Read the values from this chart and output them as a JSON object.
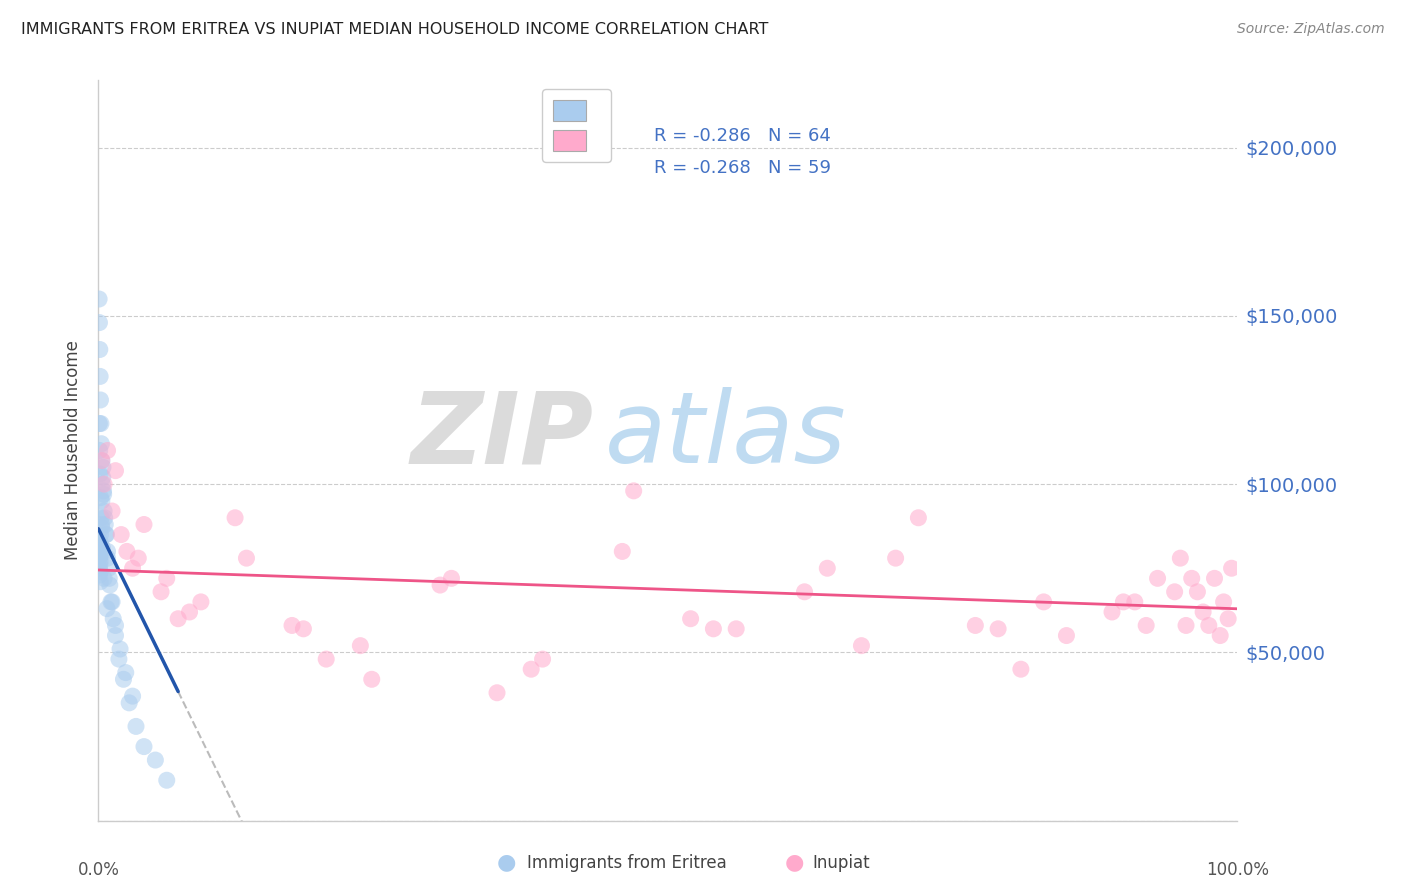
{
  "title": "IMMIGRANTS FROM ERITREA VS INUPIAT MEDIAN HOUSEHOLD INCOME CORRELATION CHART",
  "source": "Source: ZipAtlas.com",
  "ylabel": "Median Household Income",
  "xlim": [
    0.0,
    100.0
  ],
  "ylim": [
    0,
    220000
  ],
  "yticks": [
    0,
    50000,
    100000,
    150000,
    200000
  ],
  "blue_color": "#aaccee",
  "pink_color": "#ffaacc",
  "blue_line_color": "#2255aa",
  "pink_line_color": "#ee5588",
  "dash_color": "#bbbbbb",
  "grid_color": "#cccccc",
  "ylabel_color": "#444444",
  "ytick_color": "#4472c4",
  "title_color": "#222222",
  "source_color": "#888888",
  "watermark_zip_color": "#d8d8d8",
  "watermark_atlas_color": "#b8d8f0",
  "legend_r_color": "#4472c4",
  "legend_n_color": "#4472c4",
  "blue_r": -0.286,
  "pink_r": -0.268,
  "blue_scatter_x": [
    0.05,
    0.07,
    0.08,
    0.09,
    0.1,
    0.11,
    0.12,
    0.13,
    0.14,
    0.15,
    0.16,
    0.17,
    0.18,
    0.2,
    0.22,
    0.25,
    0.28,
    0.3,
    0.35,
    0.4,
    0.45,
    0.5,
    0.6,
    0.7,
    0.8,
    0.9,
    1.0,
    1.1,
    1.3,
    1.5,
    1.8,
    2.2,
    2.7,
    3.3,
    4.0,
    5.0,
    6.0,
    0.06,
    0.09,
    0.12,
    0.15,
    0.18,
    0.22,
    0.26,
    0.3,
    0.38,
    0.46,
    0.55,
    0.65,
    0.8,
    0.95,
    1.2,
    1.5,
    1.9,
    2.4,
    3.0,
    0.08,
    0.11,
    0.14,
    0.2,
    0.28,
    0.36,
    0.5,
    0.75
  ],
  "blue_scatter_y": [
    80000,
    78000,
    75000,
    73000,
    82000,
    79000,
    76000,
    83000,
    80000,
    77000,
    74000,
    71000,
    85000,
    82000,
    79000,
    90000,
    87000,
    95000,
    100000,
    105000,
    98000,
    92000,
    88000,
    85000,
    80000,
    75000,
    70000,
    65000,
    60000,
    55000,
    48000,
    42000,
    35000,
    28000,
    22000,
    18000,
    12000,
    155000,
    148000,
    140000,
    132000,
    125000,
    118000,
    112000,
    107000,
    102000,
    97000,
    90000,
    85000,
    78000,
    72000,
    65000,
    58000,
    51000,
    44000,
    37000,
    118000,
    110000,
    103000,
    96000,
    88000,
    81000,
    72000,
    63000
  ],
  "pink_scatter_x": [
    0.3,
    0.8,
    1.5,
    2.5,
    4.0,
    6.0,
    9.0,
    13.0,
    18.0,
    24.0,
    31.0,
    39.0,
    47.0,
    56.0,
    64.0,
    72.0,
    79.0,
    85.0,
    90.0,
    93.0,
    95.0,
    96.5,
    97.5,
    98.0,
    98.8,
    99.2,
    99.5,
    0.5,
    1.2,
    2.0,
    3.5,
    5.5,
    8.0,
    12.0,
    17.0,
    23.0,
    30.0,
    38.0,
    46.0,
    54.0,
    62.0,
    70.0,
    77.0,
    83.0,
    89.0,
    92.0,
    94.5,
    96.0,
    97.0,
    98.5,
    3.0,
    7.0,
    20.0,
    35.0,
    52.0,
    67.0,
    81.0,
    91.0,
    95.5
  ],
  "pink_scatter_y": [
    107000,
    110000,
    104000,
    80000,
    88000,
    72000,
    65000,
    78000,
    57000,
    42000,
    72000,
    48000,
    98000,
    57000,
    75000,
    90000,
    57000,
    55000,
    65000,
    72000,
    78000,
    68000,
    58000,
    72000,
    65000,
    60000,
    75000,
    100000,
    92000,
    85000,
    78000,
    68000,
    62000,
    90000,
    58000,
    52000,
    70000,
    45000,
    80000,
    57000,
    68000,
    78000,
    58000,
    65000,
    62000,
    58000,
    68000,
    72000,
    62000,
    55000,
    75000,
    60000,
    48000,
    38000,
    60000,
    52000,
    45000,
    65000,
    58000
  ]
}
